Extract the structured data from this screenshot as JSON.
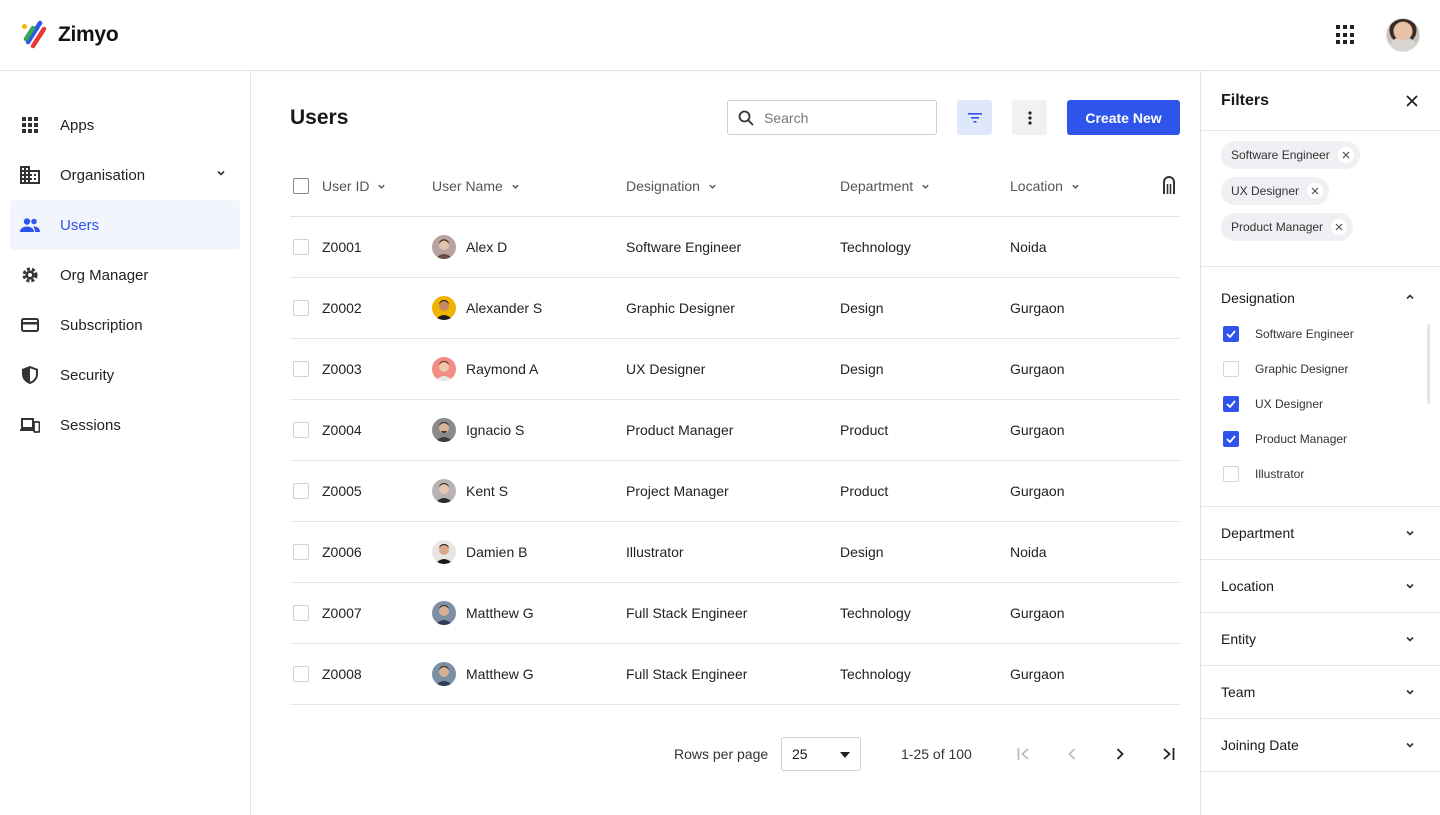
{
  "app": {
    "name": "Zimyo"
  },
  "sidebar": {
    "items": [
      {
        "label": "Apps",
        "icon": "apps-grid-icon"
      },
      {
        "label": "Organisation",
        "icon": "building-icon",
        "has_submenu": true
      },
      {
        "label": "Users",
        "icon": "users-icon",
        "active": true
      },
      {
        "label": "Org Manager",
        "icon": "settings-cog-icon"
      },
      {
        "label": "Subscription",
        "icon": "credit-card-icon"
      },
      {
        "label": "Security",
        "icon": "shield-icon"
      },
      {
        "label": "Sessions",
        "icon": "devices-icon"
      }
    ]
  },
  "main": {
    "title": "Users",
    "search": {
      "placeholder": "Search",
      "value": ""
    },
    "create_label": "Create New",
    "accent": "#2f54eb"
  },
  "table": {
    "columns": [
      "User ID",
      "User Name",
      "Designation",
      "Department",
      "Location"
    ],
    "rows": [
      {
        "id": "Z0001",
        "name": "Alex D",
        "designation": "Software Engineer",
        "department": "Technology",
        "location": "Noida"
      },
      {
        "id": "Z0002",
        "name": "Alexander S",
        "designation": "Graphic Designer",
        "department": "Design",
        "location": "Gurgaon"
      },
      {
        "id": "Z0003",
        "name": "Raymond A",
        "designation": "UX Designer",
        "department": "Design",
        "location": "Gurgaon"
      },
      {
        "id": "Z0004",
        "name": "Ignacio S",
        "designation": "Product Manager",
        "department": "Product",
        "location": "Gurgaon"
      },
      {
        "id": "Z0005",
        "name": "Kent S",
        "designation": "Project Manager",
        "department": "Product",
        "location": "Gurgaon"
      },
      {
        "id": "Z0006",
        "name": "Damien B",
        "designation": "Illustrator",
        "department": "Design",
        "location": "Noida"
      },
      {
        "id": "Z0007",
        "name": "Matthew G",
        "designation": "Full Stack Engineer",
        "department": "Technology",
        "location": "Gurgaon"
      },
      {
        "id": "Z0008",
        "name": "Matthew G",
        "designation": "Full Stack Engineer",
        "department": "Technology",
        "location": "Gurgaon"
      }
    ]
  },
  "pagination": {
    "rows_per_page_label": "Rows per page",
    "rows_per_page": "25",
    "range": "1-25 of 100"
  },
  "filters": {
    "title": "Filters",
    "chips": [
      "Software Engineer",
      "UX Designer",
      "Product Manager"
    ],
    "designation": {
      "title": "Designation",
      "options": [
        {
          "label": "Software Engineer",
          "checked": true
        },
        {
          "label": "Graphic Designer",
          "checked": false
        },
        {
          "label": "UX Designer",
          "checked": true
        },
        {
          "label": "Product Manager",
          "checked": true
        },
        {
          "label": "Illustrator",
          "checked": false
        }
      ]
    },
    "sections": [
      "Department",
      "Location",
      "Entity",
      "Team",
      "Joining Date"
    ]
  }
}
